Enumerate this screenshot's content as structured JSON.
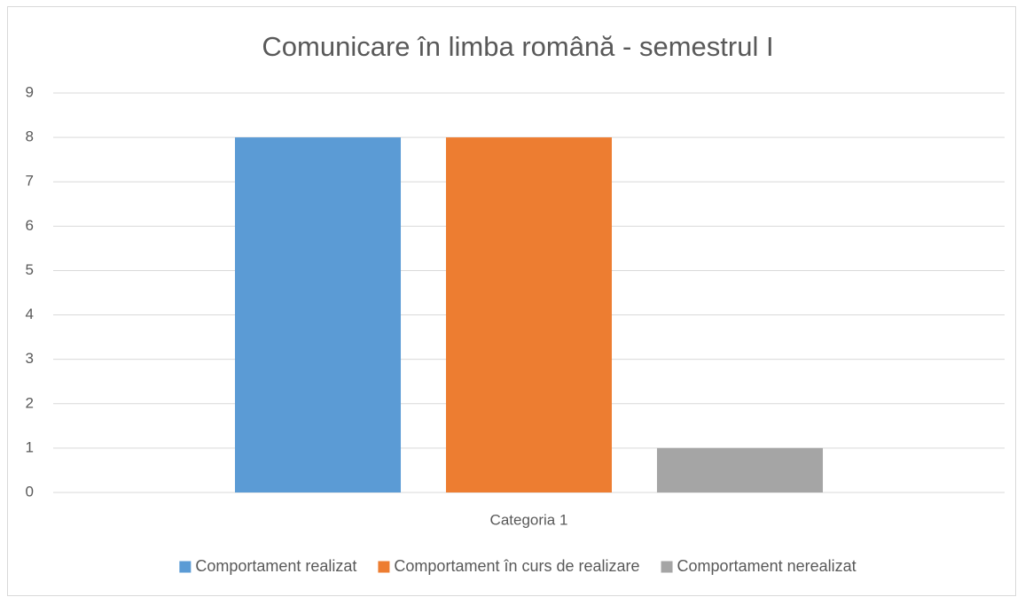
{
  "chart_data": {
    "type": "bar",
    "title": "Comunicare în limba română - semestrul I",
    "categories": [
      "Categoria 1"
    ],
    "series": [
      {
        "name": "Comportament realizat",
        "color": "#5b9bd5",
        "values": [
          8
        ]
      },
      {
        "name": "Comportament în curs de realizare",
        "color": "#ed7d31",
        "values": [
          8
        ]
      },
      {
        "name": "Comportament nerealizat",
        "color": "#a5a5a5",
        "values": [
          1
        ]
      }
    ],
    "ylim": [
      0,
      9
    ],
    "yticks": [
      0,
      1,
      2,
      3,
      4,
      5,
      6,
      7,
      8,
      9
    ],
    "grid": true,
    "legend": "bottom"
  }
}
